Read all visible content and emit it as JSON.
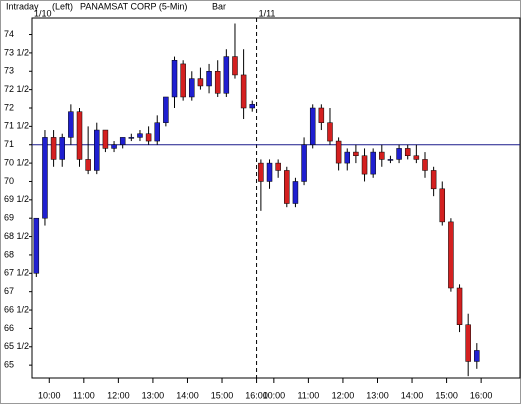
{
  "chart_data": {
    "type": "candlestick",
    "header": {
      "mode": "Intraday",
      "side": "(Left)",
      "title": "PANAMSAT CORP  (5-Min)",
      "style": "Bar"
    },
    "x": [
      0,
      1,
      2,
      3,
      4,
      5,
      6,
      7,
      8,
      9,
      10,
      11,
      12,
      13,
      14,
      15,
      16,
      17,
      18,
      19,
      20,
      21,
      22,
      23,
      24,
      25,
      26,
      27,
      28,
      29,
      30,
      31,
      32,
      33,
      34,
      35,
      36,
      37,
      38,
      39,
      40,
      41,
      42,
      43,
      44,
      45,
      46,
      47,
      48,
      49,
      50,
      51
    ],
    "open": [
      67.5,
      69,
      71.2,
      70.6,
      71.2,
      71.9,
      70.6,
      70.3,
      71.4,
      70.9,
      71.0,
      71.2,
      71.2,
      71.3,
      71.1,
      71.6,
      72.3,
      73.2,
      72.3,
      72.8,
      72.6,
      73.0,
      72.4,
      73.4,
      72.9,
      72.0,
      70.5,
      70.0,
      70.5,
      70.3,
      69.4,
      70.0,
      71.0,
      72.0,
      71.6,
      71.1,
      70.5,
      70.8,
      70.7,
      70.2,
      70.8,
      70.6,
      70.6,
      70.9,
      70.7,
      70.6,
      70.3,
      69.8,
      68.9,
      67.1,
      66.1,
      65.1
    ],
    "high": [
      69,
      71.4,
      71.4,
      71.3,
      72.1,
      72,
      71.5,
      71.6,
      71.4,
      71.1,
      71.2,
      71.3,
      71.4,
      71.5,
      71.8,
      72.3,
      73.4,
      73.3,
      73.0,
      73.1,
      73.2,
      73.3,
      73.6,
      74.3,
      73.6,
      72.2,
      70.6,
      70.6,
      70.6,
      70.4,
      70.1,
      71.2,
      72.1,
      72.1,
      72.0,
      71.2,
      70.9,
      71.0,
      70.9,
      70.9,
      71.0,
      70.7,
      71.0,
      71.0,
      71.0,
      70.8,
      70.4,
      70.0,
      69.0,
      67.2,
      66.4,
      65.6
    ],
    "low": [
      67.4,
      68.8,
      70.4,
      70.4,
      71,
      70.4,
      70.2,
      70.2,
      70.8,
      70.8,
      70.9,
      71.1,
      71.1,
      71.0,
      71.0,
      71.5,
      72.0,
      72.2,
      72.2,
      72.5,
      72.4,
      72.3,
      72.3,
      72.8,
      71.7,
      71.9,
      69.2,
      69.8,
      70.1,
      69.3,
      69.3,
      69.9,
      70.9,
      71.4,
      71.0,
      70.3,
      70.3,
      70.5,
      70.0,
      70.1,
      70.4,
      70.5,
      70.5,
      70.6,
      70.5,
      70.1,
      69.6,
      68.8,
      67.0,
      65.9,
      64.7,
      64.9
    ],
    "close": [
      69,
      71.2,
      70.6,
      71.2,
      71.9,
      70.6,
      70.3,
      71.4,
      70.9,
      71.0,
      71.2,
      71.2,
      71.3,
      71.1,
      71.6,
      72.3,
      73.3,
      72.3,
      72.8,
      72.6,
      73.0,
      72.4,
      73.4,
      72.9,
      72.0,
      72.1,
      70.0,
      70.5,
      70.3,
      69.4,
      70.0,
      71.0,
      72.0,
      71.6,
      71.1,
      70.5,
      70.8,
      70.7,
      70.2,
      70.8,
      70.6,
      70.6,
      70.9,
      70.7,
      70.6,
      70.3,
      69.8,
      68.9,
      67.1,
      66.1,
      65.1,
      65.4
    ],
    "up_color": "#1f1fd0",
    "down_color": "#d42020",
    "reference_line": 71,
    "reference_color": "#1a1a8c",
    "xlim": [
      0,
      56.5
    ],
    "xticks": [
      {
        "value": 2,
        "label": "10:00"
      },
      {
        "value": 6,
        "label": "11:00"
      },
      {
        "value": 10,
        "label": "12:00"
      },
      {
        "value": 14,
        "label": "13:00"
      },
      {
        "value": 18,
        "label": "14:00"
      },
      {
        "value": 22,
        "label": "15:00"
      },
      {
        "value": 26,
        "label": "16:00"
      },
      {
        "value": 28,
        "label": "10:00"
      },
      {
        "value": 32,
        "label": "11:00"
      },
      {
        "value": 36,
        "label": "12:00"
      },
      {
        "value": 40,
        "label": "13:00"
      },
      {
        "value": 44,
        "label": "14:00"
      },
      {
        "value": 48,
        "label": "15:00"
      },
      {
        "value": 52,
        "label": "16:00"
      }
    ],
    "day_labels": [
      {
        "value": 0,
        "label": "1/10"
      },
      {
        "value": 26,
        "label": "1/11"
      }
    ],
    "ylim": [
      64.65,
      74.45
    ],
    "yticks": [
      74,
      {
        "value": 73.5,
        "label": "73 1/2"
      },
      73,
      {
        "value": 72.5,
        "label": "72 1/2"
      },
      72,
      {
        "value": 71.5,
        "label": "71 1/2"
      },
      71,
      {
        "value": 70.5,
        "label": "70 1/2"
      },
      70,
      {
        "value": 69.5,
        "label": "69 1/2"
      },
      69,
      {
        "value": 68.5,
        "label": "68 1/2"
      },
      68,
      {
        "value": 67.5,
        "label": "67 1/2"
      },
      67,
      {
        "value": 66.5,
        "label": "66 1/2"
      },
      66,
      {
        "value": 65.5,
        "label": "65 1/2"
      },
      65
    ]
  }
}
